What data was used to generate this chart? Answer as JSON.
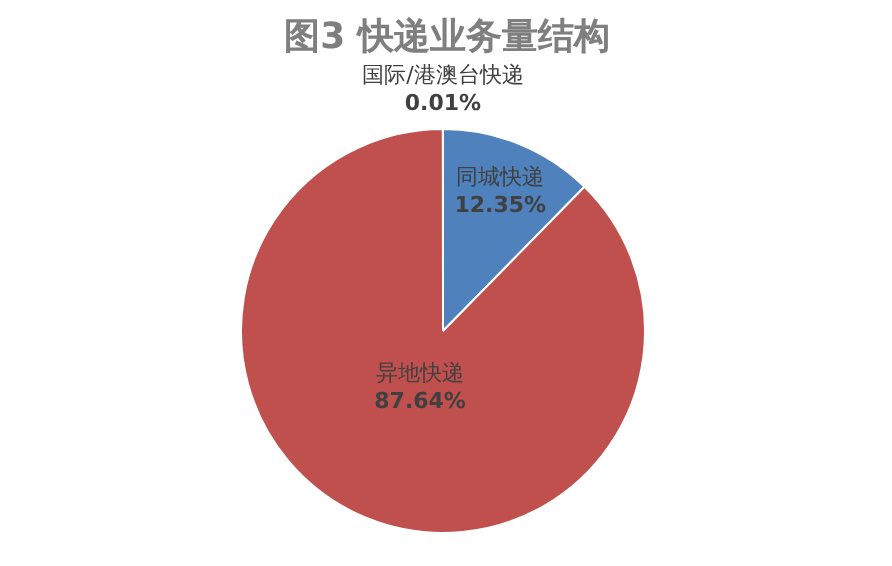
{
  "chart_data": {
    "type": "pie",
    "title": "图3 快递业务量结构",
    "categories": [
      "同城快递",
      "异地快递",
      "国际/港澳台快递"
    ],
    "values": [
      12.35,
      87.64,
      0.01
    ],
    "colors": [
      "#4f81bd",
      "#c0504d",
      "#9bbb59"
    ],
    "value_labels": [
      "12.35%",
      "87.64%",
      "0.01%"
    ]
  }
}
